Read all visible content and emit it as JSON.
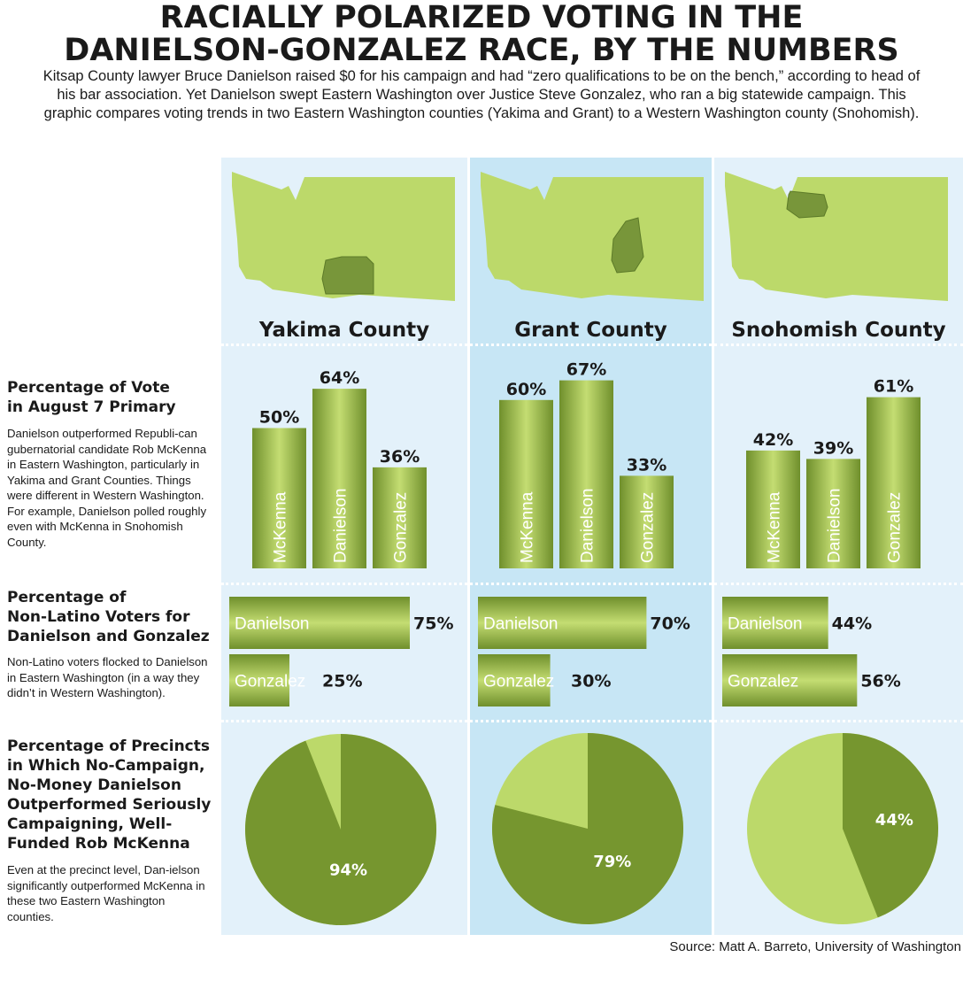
{
  "title": {
    "line1": "RACIALLY POLARIZED VOTING IN THE",
    "line2": "DANIELSON-GONZALEZ RACE, BY THE NUMBERS"
  },
  "intro": "Kitsap County lawyer Bruce Danielson raised $0 for his campaign and had “zero qualifications to be on the bench,” according to head of his bar association. Yet Danielson swept Eastern Washington over Justice Steve Gonzalez, who ran a big statewide campaign. This graphic compares voting trends in two Eastern Washington counties (Yakima and Grant) to a Western Washington county (Snohomish).",
  "sections": {
    "primary": {
      "heading_line1": "Percentage of Vote",
      "heading_line2": "in August 7 Primary",
      "body": "Danielson outperformed Republi-can gubernatorial candidate Rob McKenna in Eastern Washington, particularly in Yakima and Grant Counties. Things were different in Western Washington. For example, Danielson polled roughly even with McKenna in Snohomish County."
    },
    "nonlatino": {
      "heading_line1": "Percentage of",
      "heading_line2": "Non-Latino Voters for",
      "heading_line3": "Danielson and Gonzalez",
      "body": "Non-Latino voters flocked to Danielson in Eastern Washington (in a way they didn’t in Western Washington)."
    },
    "precincts": {
      "heading_line1": "Percentage of Precincts",
      "heading_line2": "in Which No-Campaign,",
      "heading_line3": "No-Money Danielson",
      "heading_line4": "Outperformed Seriously",
      "heading_line5": "Campaigning, Well-",
      "heading_line6": "Funded Rob McKenna",
      "body": "Even at the precinct level, Dan-ielson significantly outperformed McKenna in these two Eastern Washington counties."
    }
  },
  "source": "Source: Matt A. Barreto, University of Washington",
  "colors": {
    "state": "#bcd96a",
    "county_highlight": "#78963a",
    "bar_dark": "#6f8f2c",
    "bar_light": "#c4dd72",
    "pie_dark": "#76962f",
    "pie_light": "#bcd96a"
  },
  "chart_data": [
    {
      "type": "bar",
      "county": "Yakima County",
      "section": "primary",
      "categories": [
        "McKenna",
        "Danielson",
        "Gonzalez"
      ],
      "values": [
        50,
        64,
        36
      ],
      "labels": [
        "50%",
        "64%",
        "36%"
      ]
    },
    {
      "type": "bar",
      "county": "Grant County",
      "section": "primary",
      "categories": [
        "McKenna",
        "Danielson",
        "Gonzalez"
      ],
      "values": [
        60,
        67,
        33
      ],
      "labels": [
        "60%",
        "67%",
        "33%"
      ]
    },
    {
      "type": "bar",
      "county": "Snohomish County",
      "section": "primary",
      "categories": [
        "McKenna",
        "Danielson",
        "Gonzalez"
      ],
      "values": [
        42,
        39,
        61
      ],
      "labels": [
        "42%",
        "39%",
        "61%"
      ]
    },
    {
      "type": "bar",
      "orientation": "horizontal",
      "county": "Yakima County",
      "section": "nonlatino",
      "categories": [
        "Danielson",
        "Gonzalez"
      ],
      "values": [
        75,
        25
      ],
      "labels": [
        "75%",
        "25%"
      ]
    },
    {
      "type": "bar",
      "orientation": "horizontal",
      "county": "Grant County",
      "section": "nonlatino",
      "categories": [
        "Danielson",
        "Gonzalez"
      ],
      "values": [
        70,
        30
      ],
      "labels": [
        "70%",
        "30%"
      ]
    },
    {
      "type": "bar",
      "orientation": "horizontal",
      "county": "Snohomish County",
      "section": "nonlatino",
      "categories": [
        "Danielson",
        "Gonzalez"
      ],
      "values": [
        44,
        56
      ],
      "labels": [
        "44%",
        "56%"
      ]
    },
    {
      "type": "pie",
      "county": "Yakima County",
      "section": "precincts",
      "values": [
        94,
        6
      ],
      "label": "94%"
    },
    {
      "type": "pie",
      "county": "Grant County",
      "section": "precincts",
      "values": [
        79,
        21
      ],
      "label": "79%"
    },
    {
      "type": "pie",
      "county": "Snohomish County",
      "section": "precincts",
      "values": [
        44,
        56
      ],
      "label": "44%"
    }
  ],
  "counties": [
    {
      "name": "Yakima County",
      "icon": "washington-map-yakima-icon"
    },
    {
      "name": "Grant County",
      "icon": "washington-map-grant-icon"
    },
    {
      "name": "Snohomish County",
      "icon": "washington-map-snohomish-icon"
    }
  ]
}
